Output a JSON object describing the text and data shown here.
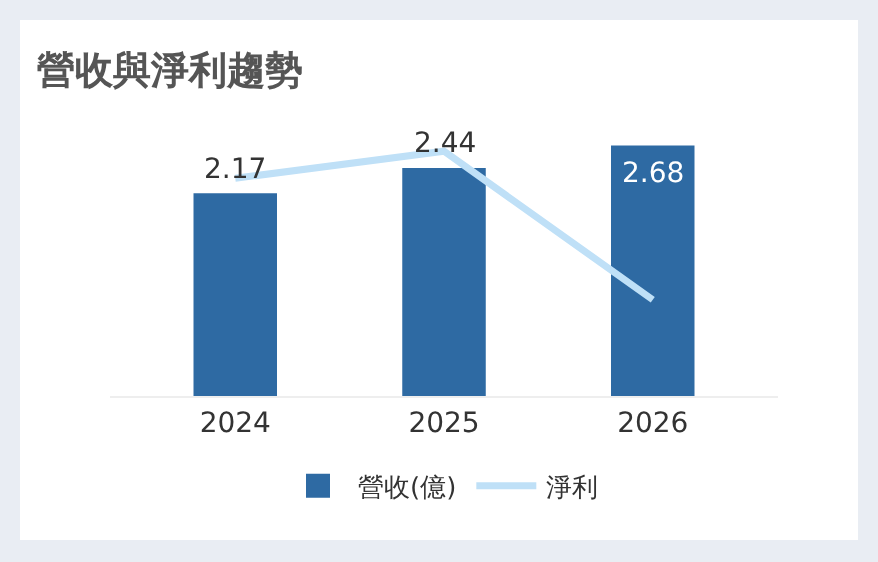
{
  "chart_data": {
    "type": "bar",
    "title": "營收與淨利趨勢",
    "categories": [
      "2024",
      "2025",
      "2026"
    ],
    "series": [
      {
        "name": "營收(億)",
        "color": "#2e6aa3",
        "values": [
          2.17,
          2.44,
          2.68
        ],
        "value_labels": [
          "2.17",
          "2.44",
          "2.68"
        ]
      },
      {
        "name": "淨利",
        "type": "line",
        "color": "#bfe0f7",
        "values": [
          2.33,
          2.62,
          1.03
        ]
      }
    ],
    "legend": "bottom",
    "grid": false,
    "tick_labels": "x",
    "marker": "none",
    "line_style": "solid"
  }
}
